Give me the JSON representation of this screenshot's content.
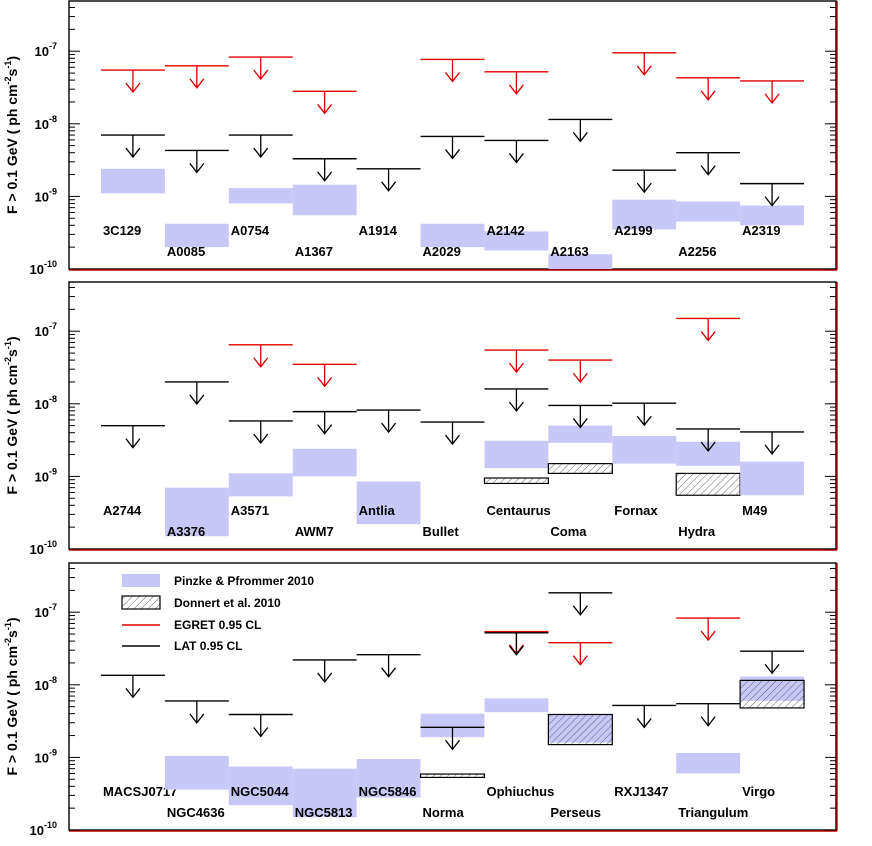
{
  "chart_data": {
    "type": "upper-limits",
    "y_label": "F > 0.1 GeV ( ph cm",
    "y_label_sup1": "-2",
    "y_label_mid": "s",
    "y_label_sup2": "-1",
    "y_label_end": ")",
    "y_scale": "log",
    "ylim": [
      1e-10,
      4e-07
    ],
    "y_ticks": [
      {
        "base": "10",
        "exp": "-10",
        "value": 1e-10
      },
      {
        "base": "10",
        "exp": "-9",
        "value": 1e-09
      },
      {
        "base": "10",
        "exp": "-8",
        "value": 1e-08
      },
      {
        "base": "10",
        "exp": "-7",
        "value": 1e-07
      }
    ],
    "legend": {
      "pinzke": "Pinzke & Pfrommer 2010",
      "donnert": "Donnert et al. 2010",
      "egret": "EGRET 0.95 CL",
      "lat": "LAT 0.95 CL"
    },
    "colors": {
      "pinzke": "#c8c8f8",
      "egret": "#dd0000",
      "lat": "#000000",
      "frame_line": "#c00000"
    },
    "panels": [
      {
        "clusters": [
          {
            "name": "3C129",
            "lat": 7e-09,
            "egret": 5.5e-08,
            "pinzke": [
              1.1e-09,
              2.4e-09
            ]
          },
          {
            "name": "A0085",
            "lat": 4.3e-09,
            "egret": 6.3e-08,
            "pinzke": [
              2e-10,
              4.2e-10
            ]
          },
          {
            "name": "A0754",
            "lat": 7e-09,
            "egret": 8.3e-08,
            "pinzke": [
              8e-10,
              1.3e-09
            ]
          },
          {
            "name": "A1367",
            "lat": 3.3e-09,
            "egret": 2.8e-08,
            "pinzke": [
              5.5e-10,
              1.45e-09
            ]
          },
          {
            "name": "A1914",
            "lat": 2.4e-09
          },
          {
            "name": "A2029",
            "lat": 6.7e-09,
            "egret": 7.7e-08,
            "pinzke": [
              2e-10,
              4.2e-10
            ]
          },
          {
            "name": "A2142",
            "lat": 5.9e-09,
            "egret": 5.2e-08,
            "pinzke": [
              1.8e-10,
              3.3e-10
            ]
          },
          {
            "name": "A2163",
            "lat": 1.15e-08,
            "pinzke": [
              1e-10,
              1.6e-10
            ]
          },
          {
            "name": "A2199",
            "lat": 2.3e-09,
            "egret": 9.5e-08,
            "pinzke": [
              3.5e-10,
              9e-10
            ]
          },
          {
            "name": "A2256",
            "lat": 4e-09,
            "egret": 4.3e-08,
            "pinzke": [
              4.5e-10,
              8.5e-10
            ]
          },
          {
            "name": "A2319",
            "lat": 1.5e-09,
            "egret": 3.9e-08,
            "pinzke": [
              4e-10,
              7.5e-10
            ]
          }
        ]
      },
      {
        "clusters": [
          {
            "name": "A2744",
            "lat": 5e-09
          },
          {
            "name": "A3376",
            "lat": 2e-08,
            "pinzke": [
              1.5e-10,
              7e-10
            ]
          },
          {
            "name": "A3571",
            "lat": 5.8e-09,
            "egret": 6.5e-08,
            "pinzke": [
              5.3e-10,
              1.1e-09
            ]
          },
          {
            "name": "AWM7",
            "lat": 7.8e-09,
            "egret": 3.5e-08,
            "pinzke": [
              1e-09,
              2.4e-09
            ]
          },
          {
            "name": "Antlia",
            "lat": 8.2e-09,
            "pinzke": [
              2.2e-10,
              8.5e-10
            ]
          },
          {
            "name": "Bullet",
            "lat": 5.6e-09
          },
          {
            "name": "Centaurus",
            "lat": 1.6e-08,
            "egret": 5.5e-08,
            "pinzke": [
              1.3e-09,
              3.1e-09
            ],
            "donnert": [
              8e-10,
              9.5e-10
            ]
          },
          {
            "name": "Coma",
            "lat": 9.5e-09,
            "egret": 4e-08,
            "pinzke": [
              2.9e-09,
              5e-09
            ],
            "donnert": [
              1.1e-09,
              1.5e-09
            ]
          },
          {
            "name": "Fornax",
            "lat": 1.02e-08,
            "pinzke": [
              1.5e-09,
              3.6e-09
            ]
          },
          {
            "name": "Hydra",
            "lat": 4.5e-09,
            "egret": 1.5e-07,
            "pinzke": [
              1.4e-09,
              3e-09
            ],
            "donnert": [
              5.5e-10,
              1.1e-09
            ]
          },
          {
            "name": "M49",
            "lat": 4.1e-09,
            "pinzke": [
              5.5e-10,
              1.6e-09
            ]
          }
        ]
      },
      {
        "clusters": [
          {
            "name": "MACSJ0717",
            "lat": 1.35e-08
          },
          {
            "name": "NGC4636",
            "lat": 6e-09,
            "pinzke": [
              3.6e-10,
              1.05e-09
            ]
          },
          {
            "name": "NGC5044",
            "lat": 3.9e-09,
            "pinzke": [
              2.2e-10,
              7.5e-10
            ]
          },
          {
            "name": "NGC5813",
            "lat": 2.2e-08,
            "pinzke": [
              1.5e-10,
              7e-10
            ]
          },
          {
            "name": "NGC5846",
            "lat": 2.6e-08,
            "pinzke": [
              2.8e-10,
              9.5e-10
            ]
          },
          {
            "name": "Norma",
            "lat": 2.6e-09,
            "pinzke": [
              1.9e-09,
              4e-09
            ],
            "donnert": [
              5.3e-10,
              5.9e-10
            ]
          },
          {
            "name": "Ophiuchus",
            "lat": 5.2e-08,
            "egret": 5.4e-08,
            "pinzke": [
              4.2e-09,
              6.5e-09
            ]
          },
          {
            "name": "Perseus",
            "lat": 1.85e-07,
            "egret": 3.8e-08,
            "pinzke": [
              1.6e-09,
              3.9e-09
            ],
            "donnert": [
              1.5e-09,
              3.9e-09
            ]
          },
          {
            "name": "RXJ1347",
            "lat": 5.2e-09
          },
          {
            "name": "Triangulum",
            "lat": 5.5e-09,
            "egret": 8.3e-08,
            "pinzke": [
              6e-10,
              1.15e-09
            ]
          },
          {
            "name": "Virgo",
            "lat": 2.9e-08,
            "pinzke": [
              6e-09,
              1.3e-08
            ],
            "donnert": [
              4.8e-09,
              1.15e-08
            ]
          }
        ]
      }
    ]
  }
}
